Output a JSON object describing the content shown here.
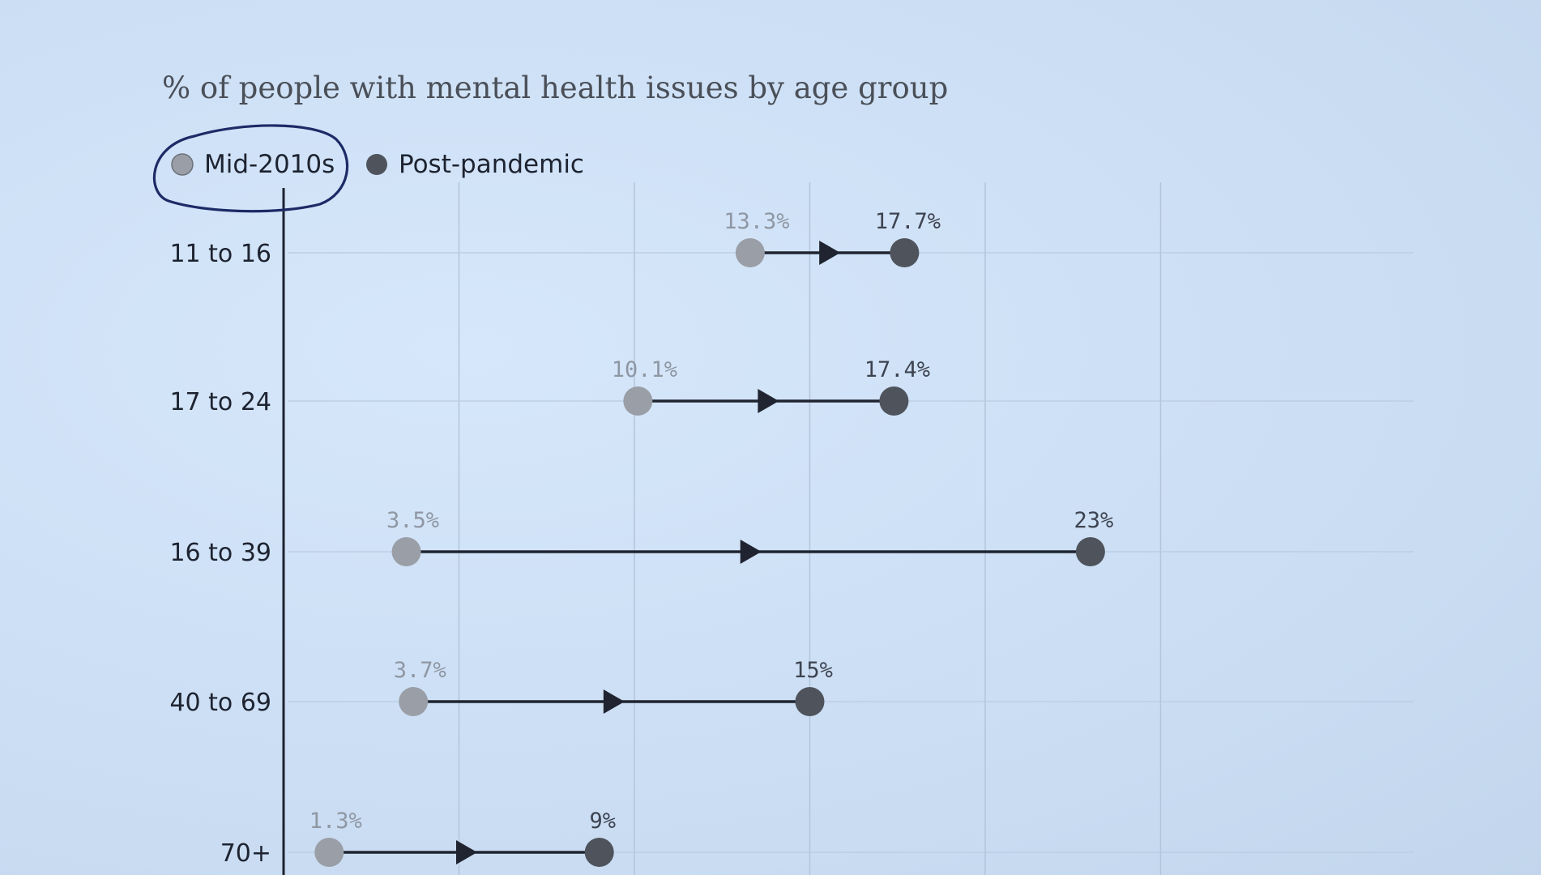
{
  "chart_data": {
    "type": "dumbbell",
    "title": "% of people with mental health issues by age group",
    "legend": {
      "position": "top-left",
      "items": [
        {
          "label": "Mid-2010s",
          "color": "#9a9ea6",
          "annotation": "hand-drawn circle"
        },
        {
          "label": "Post-pandemic",
          "color": "#4e535c"
        }
      ]
    },
    "categories": [
      "11 to 16",
      "17 to 24",
      "16 to 39",
      "40 to 69",
      "70+"
    ],
    "series": [
      {
        "name": "Mid-2010s",
        "values": [
          13.3,
          10.1,
          3.5,
          3.7,
          1.3
        ],
        "labels": [
          "13.3%",
          "10.1%",
          "3.5%",
          "3.7%",
          "1.3%"
        ]
      },
      {
        "name": "Post-pandemic",
        "values": [
          17.7,
          17.4,
          23,
          15,
          9
        ],
        "labels": [
          "17.7%",
          "17.4%",
          "23%",
          "15%",
          "9%"
        ]
      }
    ],
    "xlim": [
      0,
      25
    ],
    "grid": true,
    "arrow_color": "#1f2430",
    "annotation_color": "#1c2b66"
  }
}
